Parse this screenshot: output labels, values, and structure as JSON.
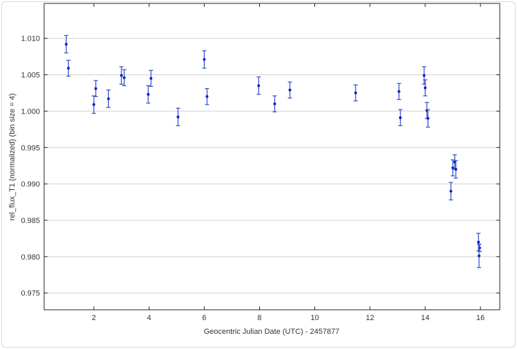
{
  "chart_data": {
    "type": "scatter",
    "title": "",
    "xlabel": "Geocentric Julian Date (UTC) - 2457877",
    "ylabel": "rel_flux_T1 (normalized) (bin size = 4)",
    "xlim": [
      0.2,
      16.7
    ],
    "ylim": [
      0.9727,
      1.0148
    ],
    "xticks": [
      "2",
      "4",
      "6",
      "8",
      "10",
      "12",
      "14",
      "16"
    ],
    "yticks": [
      "0.975",
      "0.980",
      "0.985",
      "0.990",
      "0.995",
      "1.000",
      "1.005",
      "1.010"
    ],
    "grid": "horizontal",
    "colors": {
      "points": "#0a1fd6",
      "errorbars": "#3a55c8",
      "grid": "#d0d0d0"
    },
    "points": [
      {
        "x": 1.0,
        "y": 1.0092,
        "err": 0.0012
      },
      {
        "x": 1.08,
        "y": 1.0059,
        "err": 0.0011
      },
      {
        "x": 2.0,
        "y": 1.0009,
        "err": 0.0012
      },
      {
        "x": 2.07,
        "y": 1.0031,
        "err": 0.0011
      },
      {
        "x": 2.53,
        "y": 1.0017,
        "err": 0.0012
      },
      {
        "x": 3.0,
        "y": 1.0049,
        "err": 0.0012
      },
      {
        "x": 3.1,
        "y": 1.0046,
        "err": 0.0011
      },
      {
        "x": 3.97,
        "y": 1.0023,
        "err": 0.0012
      },
      {
        "x": 4.07,
        "y": 1.0045,
        "err": 0.0011
      },
      {
        "x": 5.05,
        "y": 0.9992,
        "err": 0.0012
      },
      {
        "x": 6.0,
        "y": 1.0071,
        "err": 0.0012
      },
      {
        "x": 6.1,
        "y": 1.002,
        "err": 0.0011
      },
      {
        "x": 7.97,
        "y": 1.0035,
        "err": 0.0012
      },
      {
        "x": 8.55,
        "y": 1.001,
        "err": 0.0011
      },
      {
        "x": 9.1,
        "y": 1.0029,
        "err": 0.0011
      },
      {
        "x": 11.48,
        "y": 1.0025,
        "err": 0.0011
      },
      {
        "x": 13.05,
        "y": 1.0027,
        "err": 0.0011
      },
      {
        "x": 13.1,
        "y": 0.9991,
        "err": 0.0011
      },
      {
        "x": 13.96,
        "y": 1.0049,
        "err": 0.0012
      },
      {
        "x": 14.0,
        "y": 1.0032,
        "err": 0.0011
      },
      {
        "x": 14.06,
        "y": 1.0001,
        "err": 0.0011
      },
      {
        "x": 14.1,
        "y": 0.999,
        "err": 0.0012
      },
      {
        "x": 15.0,
        "y": 0.9922,
        "err": 0.0011
      },
      {
        "x": 15.07,
        "y": 0.993,
        "err": 0.001
      },
      {
        "x": 15.11,
        "y": 0.992,
        "err": 0.0012
      },
      {
        "x": 14.93,
        "y": 0.989,
        "err": 0.0012
      },
      {
        "x": 15.93,
        "y": 0.982,
        "err": 0.0012
      },
      {
        "x": 15.97,
        "y": 0.9812,
        "err": 0.0005
      },
      {
        "x": 15.95,
        "y": 0.9801,
        "err": 0.0016
      }
    ]
  }
}
